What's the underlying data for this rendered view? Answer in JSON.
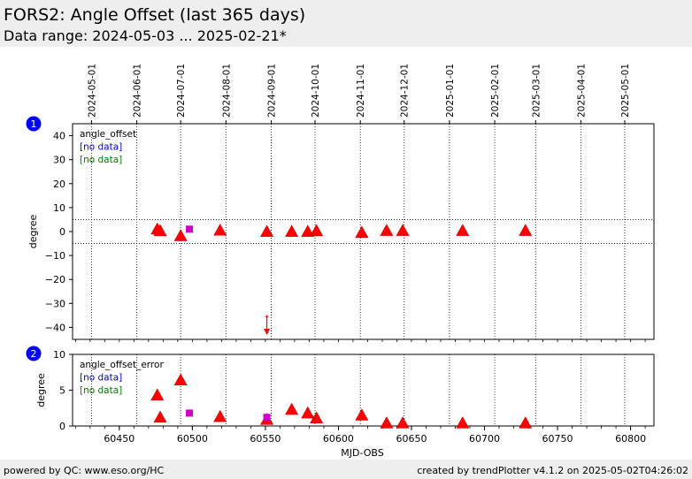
{
  "header": {
    "title": "FORS2: Angle Offset (last 365 days)",
    "subtitle": "Data range: 2024-05-03 ... 2025-02-21*"
  },
  "footer": {
    "left": "powered by QC: www.eso.org/HC",
    "right": "created by trendPlotter v4.1.2 on 2025-05-02T04:26:02"
  },
  "colors": {
    "marker": "#ff0000",
    "marker_edge": "#cc0000",
    "special_marker": "#cc00cc",
    "badge": "#0000ff",
    "no_data_blue": "#0000cc",
    "no_data_green": "#008000",
    "header_bg": "#eeeeee"
  },
  "chart_data": [
    {
      "type": "scatter",
      "panel_badge": "1",
      "ylabel": "degree",
      "ylim": [
        -45,
        45
      ],
      "yticks": [
        40,
        30,
        20,
        10,
        0,
        -10,
        -20,
        -30,
        -40
      ],
      "xlim": [
        60418,
        60816
      ],
      "hlines": [
        5,
        -5
      ],
      "legend": [
        "angle_offset",
        "[no data]",
        "[no data]"
      ],
      "date_ticks": [
        {
          "label": "2024-05-01",
          "mjd": 60431
        },
        {
          "label": "2024-06-01",
          "mjd": 60462
        },
        {
          "label": "2024-07-01",
          "mjd": 60492
        },
        {
          "label": "2024-08-01",
          "mjd": 60523
        },
        {
          "label": "2024-09-01",
          "mjd": 60554
        },
        {
          "label": "2024-10-01",
          "mjd": 60584
        },
        {
          "label": "2024-11-01",
          "mjd": 60615
        },
        {
          "label": "2024-12-01",
          "mjd": 60645
        },
        {
          "label": "2025-01-01",
          "mjd": 60676
        },
        {
          "label": "2025-02-01",
          "mjd": 60707
        },
        {
          "label": "2025-03-01",
          "mjd": 60735
        },
        {
          "label": "2025-04-01",
          "mjd": 60766
        },
        {
          "label": "2025-05-01",
          "mjd": 60796
        }
      ],
      "series": [
        {
          "marker": "triangle",
          "x": [
            60476,
            60478,
            60492,
            60519,
            60551,
            60568,
            60579,
            60585,
            60616,
            60633,
            60644,
            60685,
            60728
          ],
          "y": [
            1.0,
            0.3,
            -1.8,
            0.5,
            0.0,
            0.0,
            0.0,
            0.3,
            -0.4,
            0.4,
            0.4,
            0.4,
            0.4
          ]
        },
        {
          "marker": "square",
          "x": [
            60498
          ],
          "y": [
            1.0
          ]
        }
      ],
      "out_of_range": [
        {
          "x": 60551,
          "direction": "down"
        }
      ]
    },
    {
      "type": "scatter",
      "panel_badge": "2",
      "ylabel": "degree",
      "xlabel": "MJD-OBS",
      "ylim": [
        0,
        10
      ],
      "yticks": [
        10,
        5,
        0
      ],
      "xlim": [
        60418,
        60816
      ],
      "xticks": [
        60450,
        60500,
        60550,
        60600,
        60650,
        60700,
        60750,
        60800
      ],
      "legend": [
        "angle_offset_error",
        "[no data]",
        "[no data]"
      ],
      "series": [
        {
          "marker": "triangle",
          "x": [
            60476,
            60478,
            60492,
            60519,
            60551,
            60568,
            60579,
            60585,
            60616,
            60633,
            60644,
            60685,
            60728
          ],
          "y": [
            4.3,
            1.2,
            6.4,
            1.3,
            0.9,
            2.3,
            1.8,
            1.1,
            1.5,
            0.4,
            0.4,
            0.4,
            0.4
          ]
        },
        {
          "marker": "square",
          "x": [
            60498,
            60551
          ],
          "y": [
            1.8,
            1.2
          ]
        }
      ]
    }
  ]
}
